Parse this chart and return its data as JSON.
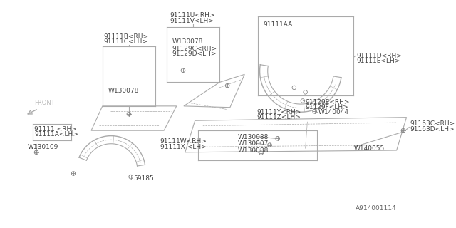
{
  "bg_color": "#ffffff",
  "line_color": "#aaaaaa",
  "text_color": "#555555",
  "title": "A914001114",
  "labels": {
    "91111U_RH": "91111U<RH>",
    "91111V_LH": "91111V<LH>",
    "91111B_RH": "91111B<RH>",
    "91111C_LH": "91111C<LH>",
    "W130078_top": "W130078",
    "91129C_RH": "91129C<RH>",
    "91129D_LH": "91129D<LH>",
    "W130078_left": "W130078",
    "91111AA": "91111AA",
    "91111D_RH": "91111D<RH>",
    "91111E_LH": "91111E<LH>",
    "91129E_RH": "91129E<RH>",
    "91129F_LH": "91129F<LH>",
    "91111Y_RH": "91111Y<RH>",
    "91111Z_LH": "91111Z<LH>",
    "W140044": "W140044",
    "91163C_RH": "91163C<RH>",
    "91163D_LH": "91163D<LH>",
    "W140055": "W140055",
    "W130088_top": "W130088",
    "W130007": "W130007",
    "W130088_bot": "W130088",
    "91111_RH": "91111 <RH>",
    "91111A_LH": "91111A<LH>",
    "W130109": "W130109",
    "59185": "59185",
    "91111W_RH": "91111W<RH>",
    "91111X_LH": "91111X <LH>",
    "FRONT": "FRONT"
  },
  "fontsize": 6.5
}
